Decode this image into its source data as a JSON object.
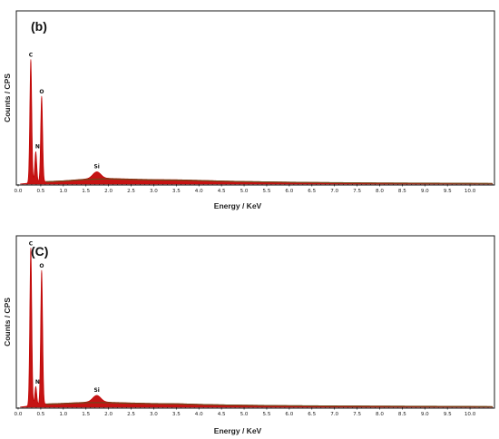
{
  "chart_data": [
    {
      "type": "area",
      "panel_label": "(b)",
      "xlabel": "Energy / KeV",
      "ylabel": "Counts / CPS",
      "xlim": [
        0.0,
        10.5
      ],
      "x_ticks": [
        "0.0",
        "0.5",
        "1.0",
        "1.5",
        "2.0",
        "2.5",
        "3.0",
        "3.5",
        "4.0",
        "4.5",
        "5.0",
        "5.5",
        "6.0",
        "6.5",
        "7.0",
        "7.5",
        "8.0",
        "8.5",
        "9.0",
        "9.5",
        "10.0"
      ],
      "ylim": [
        0,
        100
      ],
      "series_color": "#c00000",
      "peaks": [
        {
          "element": "C",
          "energy": 0.28,
          "counts": 72
        },
        {
          "element": "N",
          "energy": 0.39,
          "counts": 18
        },
        {
          "element": "O",
          "energy": 0.52,
          "counts": 50
        },
        {
          "element": "Si",
          "energy": 1.74,
          "counts": 4
        }
      ],
      "background": [
        [
          0.6,
          1.5
        ],
        [
          1.0,
          2.0
        ],
        [
          1.5,
          3.0
        ],
        [
          2.0,
          3.4
        ],
        [
          2.5,
          3.0
        ],
        [
          3.0,
          2.7
        ],
        [
          3.5,
          2.6
        ],
        [
          4.0,
          2.3
        ],
        [
          4.5,
          1.9
        ],
        [
          5.0,
          1.6
        ],
        [
          6.0,
          1.2
        ],
        [
          7.0,
          0.9
        ],
        [
          8.0,
          0.7
        ],
        [
          9.0,
          0.6
        ],
        [
          10.0,
          0.5
        ],
        [
          10.5,
          0.4
        ]
      ]
    },
    {
      "type": "area",
      "panel_label": "(C)",
      "xlabel": "Energy / KeV",
      "ylabel": "Counts / CPS",
      "xlim": [
        0.0,
        10.5
      ],
      "x_ticks": [
        "0.0",
        "0.5",
        "1.0",
        "1.5",
        "2.0",
        "2.5",
        "3.0",
        "3.5",
        "4.0",
        "4.5",
        "5.0",
        "5.5",
        "6.0",
        "6.5",
        "7.0",
        "7.5",
        "8.0",
        "8.5",
        "9.0",
        "9.5",
        "10.0"
      ],
      "ylim": [
        0,
        100
      ],
      "series_color": "#c00000",
      "peaks": [
        {
          "element": "C",
          "energy": 0.28,
          "counts": 93
        },
        {
          "element": "N",
          "energy": 0.39,
          "counts": 11
        },
        {
          "element": "O",
          "energy": 0.52,
          "counts": 79
        },
        {
          "element": "Si",
          "energy": 1.74,
          "counts": 4
        }
      ],
      "background": [
        [
          0.6,
          2.0
        ],
        [
          1.0,
          2.4
        ],
        [
          1.5,
          3.0
        ],
        [
          2.0,
          3.0
        ],
        [
          2.5,
          2.6
        ],
        [
          3.0,
          2.3
        ],
        [
          3.5,
          2.2
        ],
        [
          4.0,
          1.8
        ],
        [
          4.5,
          1.5
        ],
        [
          5.0,
          1.3
        ],
        [
          6.0,
          1.0
        ],
        [
          7.0,
          0.8
        ],
        [
          8.0,
          0.7
        ],
        [
          9.0,
          0.6
        ],
        [
          10.0,
          0.5
        ],
        [
          10.5,
          0.4
        ]
      ]
    }
  ]
}
